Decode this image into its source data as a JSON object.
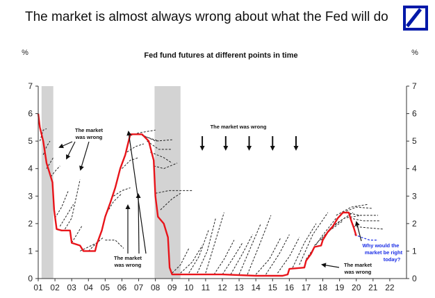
{
  "header": {
    "title": "The market is almost always wrong about what the Fed will do",
    "logo": "deutsche-bank-logo"
  },
  "colors": {
    "actual": "#e8141a",
    "futures": "#222222",
    "latest_futures": "#1b2ee6",
    "recession": "#d3d3d3"
  },
  "chart_data": {
    "type": "line",
    "title": "Fed fund futures at different points in time",
    "ylabel_left": "%",
    "ylabel_right": "%",
    "x_ticks": [
      "01",
      "02",
      "03",
      "04",
      "05",
      "06",
      "07",
      "08",
      "09",
      "10",
      "11",
      "12",
      "13",
      "14",
      "15",
      "16",
      "17",
      "18",
      "19",
      "20",
      "21",
      "22"
    ],
    "y_ticks": [
      0,
      1,
      2,
      3,
      4,
      5,
      6,
      7
    ],
    "xlim": [
      2001.0,
      2023.0
    ],
    "ylim": [
      0,
      7
    ],
    "recessions": [
      [
        2001.2,
        2001.9
      ],
      [
        2007.95,
        2009.5
      ]
    ],
    "series": [
      {
        "name": "",
        "role": "actual",
        "points": [
          [
            2001.0,
            6.0
          ],
          [
            2001.1,
            5.5
          ],
          [
            2001.3,
            5.0
          ],
          [
            2001.5,
            4.2
          ],
          [
            2001.7,
            3.8
          ],
          [
            2001.85,
            3.5
          ],
          [
            2001.95,
            2.5
          ],
          [
            2002.1,
            1.8
          ],
          [
            2002.4,
            1.75
          ],
          [
            2002.7,
            1.75
          ],
          [
            2002.9,
            1.75
          ],
          [
            2003.0,
            1.3
          ],
          [
            2003.5,
            1.2
          ],
          [
            2003.7,
            1.0
          ],
          [
            2004.0,
            1.0
          ],
          [
            2004.4,
            1.0
          ],
          [
            2004.5,
            1.25
          ],
          [
            2004.8,
            1.75
          ],
          [
            2005.0,
            2.25
          ],
          [
            2005.3,
            2.75
          ],
          [
            2005.6,
            3.3
          ],
          [
            2005.9,
            4.0
          ],
          [
            2006.2,
            4.5
          ],
          [
            2006.5,
            5.25
          ],
          [
            2006.8,
            5.25
          ],
          [
            2007.2,
            5.25
          ],
          [
            2007.6,
            5.0
          ],
          [
            2007.9,
            4.3
          ],
          [
            2008.0,
            3.0
          ],
          [
            2008.15,
            2.25
          ],
          [
            2008.5,
            2.0
          ],
          [
            2008.75,
            1.5
          ],
          [
            2008.85,
            0.4
          ],
          [
            2009.0,
            0.15
          ],
          [
            2010.0,
            0.15
          ],
          [
            2012.0,
            0.15
          ],
          [
            2014.0,
            0.1
          ],
          [
            2015.6,
            0.1
          ],
          [
            2015.9,
            0.15
          ],
          [
            2016.0,
            0.35
          ],
          [
            2016.9,
            0.4
          ],
          [
            2017.0,
            0.65
          ],
          [
            2017.3,
            0.9
          ],
          [
            2017.5,
            1.15
          ],
          [
            2017.9,
            1.2
          ],
          [
            2018.0,
            1.4
          ],
          [
            2018.3,
            1.7
          ],
          [
            2018.6,
            1.9
          ],
          [
            2018.9,
            2.2
          ],
          [
            2019.2,
            2.4
          ],
          [
            2019.55,
            2.4
          ],
          [
            2019.7,
            2.1
          ],
          [
            2019.85,
            1.85
          ],
          [
            2020.0,
            1.55
          ]
        ]
      }
    ],
    "futures_paths": [
      [
        [
          2001.1,
          5.0
        ],
        [
          2001.3,
          5.4
        ],
        [
          2001.5,
          5.45
        ]
      ],
      [
        [
          2001.3,
          4.5
        ],
        [
          2001.5,
          4.8
        ],
        [
          2001.7,
          5.0
        ]
      ],
      [
        [
          2001.5,
          4.0
        ],
        [
          2001.7,
          4.2
        ],
        [
          2001.9,
          4.4
        ]
      ],
      [
        [
          2001.75,
          3.7
        ],
        [
          2002.0,
          3.9
        ],
        [
          2002.3,
          4.1
        ]
      ],
      [
        [
          2002.0,
          2.2
        ],
        [
          2002.4,
          2.6
        ],
        [
          2002.8,
          3.2
        ]
      ],
      [
        [
          2002.3,
          1.9
        ],
        [
          2002.7,
          2.3
        ],
        [
          2003.1,
          2.7
        ]
      ],
      [
        [
          2002.6,
          1.8
        ],
        [
          2003.0,
          2.2
        ],
        [
          2003.5,
          3.6
        ]
      ],
      [
        [
          2003.0,
          1.3
        ],
        [
          2003.3,
          1.6
        ],
        [
          2003.6,
          1.9
        ]
      ],
      [
        [
          2003.5,
          1.0
        ],
        [
          2004.0,
          1.15
        ],
        [
          2004.5,
          1.3
        ]
      ],
      [
        [
          2004.0,
          1.0
        ],
        [
          2004.5,
          1.3
        ],
        [
          2004.9,
          1.5
        ]
      ],
      [
        [
          2005.0,
          2.3
        ],
        [
          2005.5,
          2.8
        ],
        [
          2006.0,
          3.1
        ]
      ],
      [
        [
          2005.5,
          3.0
        ],
        [
          2006.0,
          3.2
        ],
        [
          2006.5,
          3.3
        ]
      ],
      [
        [
          2005.0,
          1.4
        ],
        [
          2005.6,
          1.4
        ],
        [
          2006.1,
          1.1
        ]
      ],
      [
        [
          2006.0,
          4.0
        ],
        [
          2006.5,
          4.3
        ],
        [
          2007.0,
          4.4
        ]
      ],
      [
        [
          2006.3,
          4.6
        ],
        [
          2006.8,
          4.8
        ],
        [
          2007.3,
          4.9
        ]
      ],
      [
        [
          2006.5,
          5.2
        ],
        [
          2007.0,
          5.3
        ],
        [
          2008.0,
          5.4
        ]
      ],
      [
        [
          2007.0,
          5.25
        ],
        [
          2007.7,
          5.1
        ],
        [
          2008.2,
          5.0
        ]
      ],
      [
        [
          2007.3,
          5.2
        ],
        [
          2008.0,
          5.0
        ],
        [
          2009.0,
          5.05
        ]
      ],
      [
        [
          2007.5,
          5.0
        ],
        [
          2008.2,
          4.7
        ],
        [
          2009.0,
          4.7
        ]
      ],
      [
        [
          2007.7,
          4.6
        ],
        [
          2008.5,
          4.4
        ],
        [
          2009.0,
          4.2
        ]
      ],
      [
        [
          2007.9,
          4.1
        ],
        [
          2008.5,
          4.0
        ],
        [
          2009.3,
          4.2
        ]
      ],
      [
        [
          2008.0,
          3.1
        ],
        [
          2008.8,
          3.2
        ],
        [
          2010.2,
          3.2
        ]
      ],
      [
        [
          2008.3,
          2.5
        ],
        [
          2009.0,
          2.9
        ],
        [
          2009.5,
          3.1
        ]
      ],
      [
        [
          2009.0,
          0.2
        ],
        [
          2009.5,
          0.5
        ],
        [
          2010.0,
          1.1
        ]
      ],
      [
        [
          2009.5,
          0.2
        ],
        [
          2010.2,
          0.6
        ],
        [
          2010.8,
          1.2
        ]
      ],
      [
        [
          2010.0,
          0.2
        ],
        [
          2010.6,
          0.8
        ],
        [
          2011.2,
          1.8
        ]
      ],
      [
        [
          2010.5,
          0.2
        ],
        [
          2011.1,
          1.0
        ],
        [
          2011.6,
          2.2
        ]
      ],
      [
        [
          2011.0,
          0.2
        ],
        [
          2011.5,
          1.2
        ],
        [
          2012.1,
          2.4
        ]
      ],
      [
        [
          2011.5,
          0.15
        ],
        [
          2012.1,
          0.7
        ],
        [
          2012.7,
          1.4
        ]
      ],
      [
        [
          2012.0,
          0.15
        ],
        [
          2012.7,
          0.8
        ],
        [
          2013.2,
          1.3
        ]
      ],
      [
        [
          2012.5,
          0.15
        ],
        [
          2013.2,
          0.9
        ],
        [
          2013.8,
          1.6
        ]
      ],
      [
        [
          2013.0,
          0.15
        ],
        [
          2013.6,
          1.0
        ],
        [
          2014.3,
          2.0
        ]
      ],
      [
        [
          2013.5,
          0.15
        ],
        [
          2014.2,
          1.2
        ],
        [
          2014.9,
          2.3
        ]
      ],
      [
        [
          2014.0,
          0.15
        ],
        [
          2014.8,
          0.7
        ],
        [
          2015.5,
          1.5
        ]
      ],
      [
        [
          2014.6,
          0.15
        ],
        [
          2015.4,
          0.9
        ],
        [
          2016.0,
          1.6
        ]
      ],
      [
        [
          2015.3,
          0.2
        ],
        [
          2016.0,
          0.8
        ],
        [
          2016.6,
          1.5
        ]
      ],
      [
        [
          2016.2,
          0.4
        ],
        [
          2016.9,
          1.3
        ],
        [
          2017.6,
          2.0
        ]
      ],
      [
        [
          2016.6,
          0.5
        ],
        [
          2017.4,
          1.6
        ],
        [
          2018.3,
          2.4
        ]
      ],
      [
        [
          2017.0,
          0.7
        ],
        [
          2017.9,
          1.5
        ],
        [
          2018.8,
          2.2
        ]
      ],
      [
        [
          2017.5,
          1.2
        ],
        [
          2018.3,
          1.7
        ],
        [
          2019.2,
          2.1
        ]
      ],
      [
        [
          2017.9,
          1.4
        ],
        [
          2018.8,
          2.0
        ],
        [
          2019.8,
          2.4
        ]
      ],
      [
        [
          2018.4,
          1.8
        ],
        [
          2019.3,
          2.2
        ],
        [
          2020.3,
          2.3
        ]
      ],
      [
        [
          2018.8,
          2.3
        ],
        [
          2019.7,
          2.6
        ],
        [
          2020.7,
          2.7
        ]
      ],
      [
        [
          2019.2,
          2.4
        ],
        [
          2020.0,
          2.6
        ],
        [
          2021.0,
          2.55
        ]
      ],
      [
        [
          2019.4,
          2.4
        ],
        [
          2020.2,
          2.3
        ],
        [
          2021.3,
          2.3
        ]
      ],
      [
        [
          2019.6,
          2.2
        ],
        [
          2020.4,
          2.1
        ],
        [
          2021.4,
          2.1
        ]
      ],
      [
        [
          2019.8,
          1.9
        ],
        [
          2020.6,
          1.85
        ],
        [
          2021.6,
          1.8
        ]
      ]
    ],
    "latest_futures": [
      [
        2019.9,
        1.6
      ],
      [
        2020.3,
        1.5
      ],
      [
        2020.8,
        1.4
      ],
      [
        2021.3,
        1.4
      ]
    ],
    "arrows_down": [
      2010.8,
      2012.2,
      2013.6,
      2015.0,
      2016.4
    ],
    "annotations": {
      "wrong_top_left": [
        "The market",
        "was wrong"
      ],
      "wrong_top_mid": "The market was wrong",
      "wrong_bottom_left": [
        "The market",
        "was wrong"
      ],
      "wrong_bottom_right": [
        "The market",
        "was wrong"
      ],
      "why_right": [
        "Why would the",
        "market be right",
        "today?"
      ]
    }
  }
}
